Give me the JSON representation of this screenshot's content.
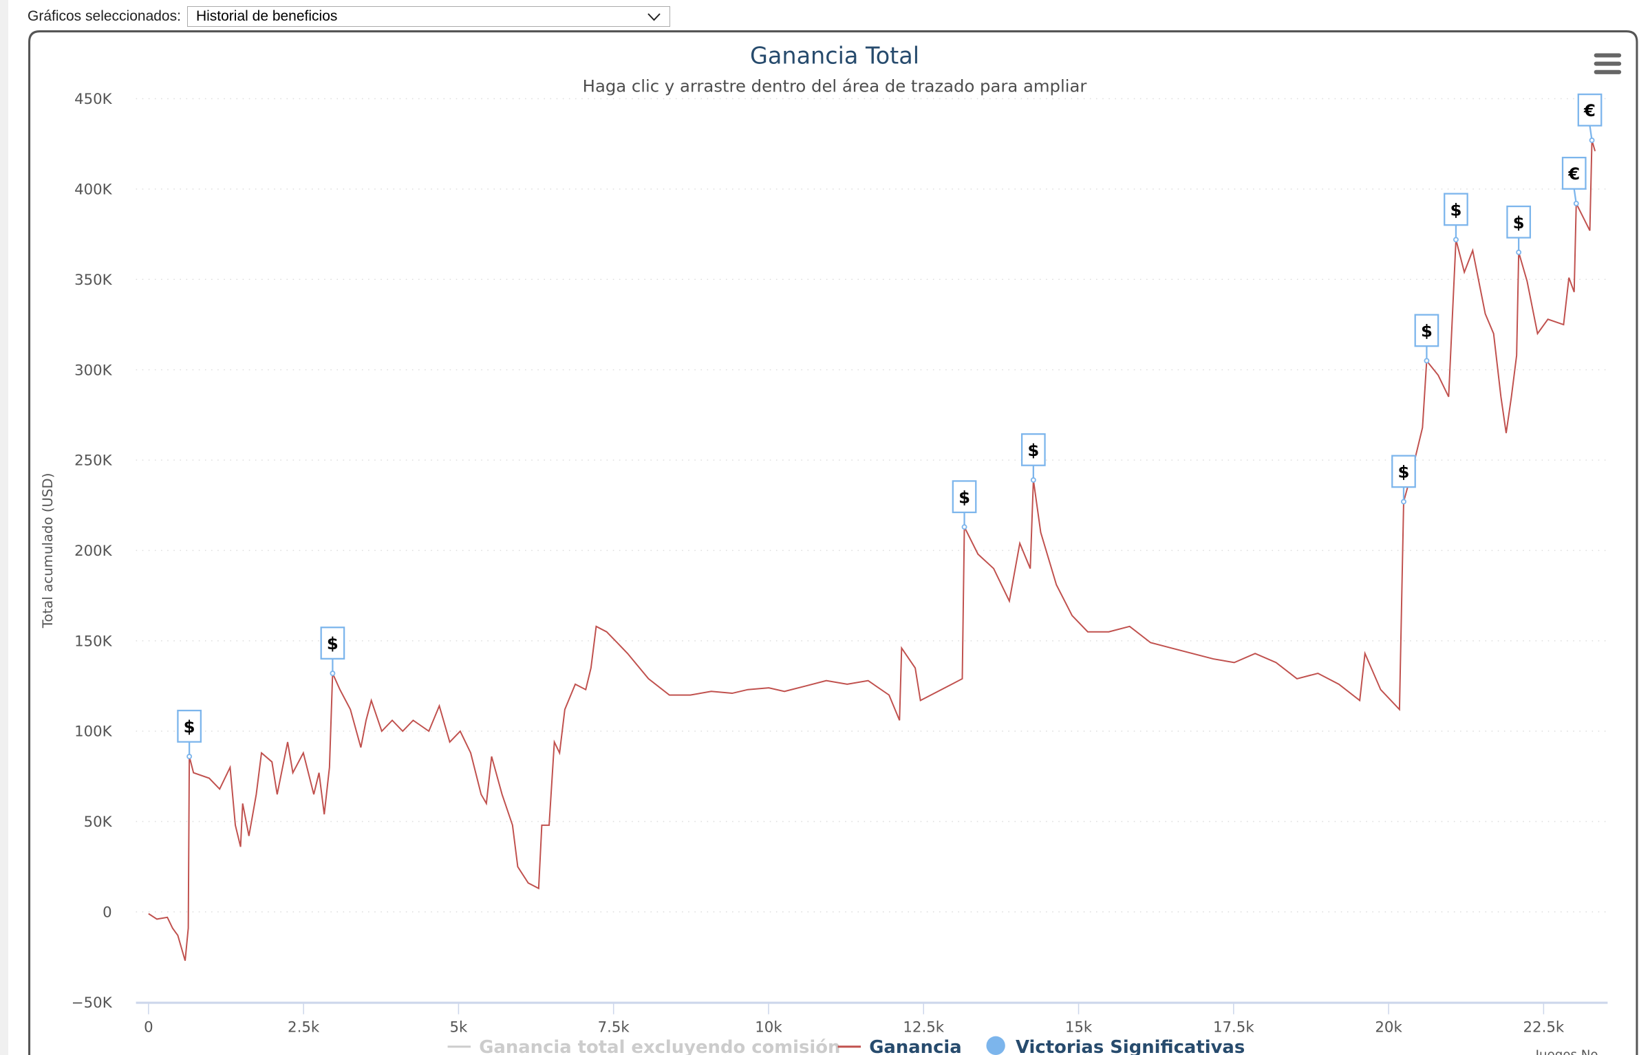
{
  "selector": {
    "label": "Gráficos seleccionados:",
    "value": "Historial de beneficios"
  },
  "menu_icon": "hamburger-menu-icon",
  "colors": {
    "line": "#c0504d",
    "marker": "#7cb5ec",
    "title": "#274b6d",
    "legend_hidden": "#cccccc"
  },
  "chart_data": {
    "type": "line",
    "title": "Ganancia Total",
    "subtitle": "Haga clic y arrastre dentro del área de trazado para ampliar",
    "xlabel": "Juegos No",
    "ylabel": "Total acumulado (USD)",
    "xlim": [
      0,
      23600
    ],
    "ylim": [
      -50000,
      450000
    ],
    "grid": true,
    "x_ticks": [
      {
        "v": 0,
        "label": "0"
      },
      {
        "v": 2500,
        "label": "2.5k"
      },
      {
        "v": 5000,
        "label": "5k"
      },
      {
        "v": 7500,
        "label": "7.5k"
      },
      {
        "v": 10000,
        "label": "10k"
      },
      {
        "v": 12500,
        "label": "12.5k"
      },
      {
        "v": 15000,
        "label": "15k"
      },
      {
        "v": 17500,
        "label": "17.5k"
      },
      {
        "v": 20000,
        "label": "20k"
      },
      {
        "v": 22500,
        "label": "22.5k"
      }
    ],
    "y_ticks": [
      {
        "v": -50000,
        "label": "−50K"
      },
      {
        "v": 0,
        "label": "0"
      },
      {
        "v": 50000,
        "label": "50K"
      },
      {
        "v": 100000,
        "label": "100K"
      },
      {
        "v": 150000,
        "label": "150K"
      },
      {
        "v": 200000,
        "label": "200K"
      },
      {
        "v": 250000,
        "label": "250K"
      },
      {
        "v": 300000,
        "label": "300K"
      },
      {
        "v": 350000,
        "label": "350K"
      },
      {
        "v": 400000,
        "label": "400K"
      },
      {
        "v": 450000,
        "label": "450K"
      }
    ],
    "legend": [
      {
        "name": "Ganancia total excluyendo comisión",
        "visible": false
      },
      {
        "name": "Ganancia",
        "visible": true
      },
      {
        "name": "Victorias Significativas",
        "visible": true
      }
    ],
    "legend_position": "bottom",
    "series": [
      {
        "name": "Ganancia",
        "points": [
          [
            0,
            -1000
          ],
          [
            135,
            -4000
          ],
          [
            304,
            -3000
          ],
          [
            388,
            -9000
          ],
          [
            472,
            -13000
          ],
          [
            590,
            -27000
          ],
          [
            641,
            -9000
          ],
          [
            658,
            86000
          ],
          [
            725,
            77000
          ],
          [
            978,
            74000
          ],
          [
            1147,
            68000
          ],
          [
            1316,
            80000
          ],
          [
            1400,
            48000
          ],
          [
            1484,
            36000
          ],
          [
            1518,
            60000
          ],
          [
            1619,
            42000
          ],
          [
            1738,
            65000
          ],
          [
            1822,
            88000
          ],
          [
            1991,
            83000
          ],
          [
            2075,
            65000
          ],
          [
            2244,
            94000
          ],
          [
            2328,
            77000
          ],
          [
            2497,
            88000
          ],
          [
            2665,
            65000
          ],
          [
            2750,
            77000
          ],
          [
            2834,
            54000
          ],
          [
            2918,
            80000
          ],
          [
            2969,
            132000
          ],
          [
            3087,
            123000
          ],
          [
            3256,
            112000
          ],
          [
            3424,
            91000
          ],
          [
            3509,
            106000
          ],
          [
            3593,
            117000
          ],
          [
            3762,
            100000
          ],
          [
            3931,
            106000
          ],
          [
            4099,
            100000
          ],
          [
            4268,
            106000
          ],
          [
            4521,
            100000
          ],
          [
            4690,
            114000
          ],
          [
            4858,
            94000
          ],
          [
            5027,
            100000
          ],
          [
            5196,
            88000
          ],
          [
            5364,
            65000
          ],
          [
            5449,
            60000
          ],
          [
            5533,
            86000
          ],
          [
            5702,
            65000
          ],
          [
            5870,
            48000
          ],
          [
            5955,
            25000
          ],
          [
            6123,
            16000
          ],
          [
            6292,
            13000
          ],
          [
            6343,
            48000
          ],
          [
            6461,
            48000
          ],
          [
            6545,
            94000
          ],
          [
            6630,
            88000
          ],
          [
            6714,
            112000
          ],
          [
            6883,
            126000
          ],
          [
            7051,
            123000
          ],
          [
            7136,
            135000
          ],
          [
            7220,
            158000
          ],
          [
            7389,
            155000
          ],
          [
            7557,
            149000
          ],
          [
            7726,
            143000
          ],
          [
            8063,
            129000
          ],
          [
            8400,
            120000
          ],
          [
            8738,
            120000
          ],
          [
            9075,
            122000
          ],
          [
            9413,
            121000
          ],
          [
            9666,
            123000
          ],
          [
            10003,
            124000
          ],
          [
            10256,
            122000
          ],
          [
            10594,
            125000
          ],
          [
            10931,
            128000
          ],
          [
            11268,
            126000
          ],
          [
            11606,
            128000
          ],
          [
            11943,
            120000
          ],
          [
            12112,
            106000
          ],
          [
            12146,
            146000
          ],
          [
            12365,
            135000
          ],
          [
            12449,
            117000
          ],
          [
            12618,
            120000
          ],
          [
            12787,
            123000
          ],
          [
            12955,
            126000
          ],
          [
            13124,
            129000
          ],
          [
            13158,
            213000
          ],
          [
            13377,
            198000
          ],
          [
            13630,
            190000
          ],
          [
            13883,
            172000
          ],
          [
            14052,
            204000
          ],
          [
            14221,
            190000
          ],
          [
            14271,
            239000
          ],
          [
            14389,
            210000
          ],
          [
            14642,
            181000
          ],
          [
            14895,
            164000
          ],
          [
            15148,
            155000
          ],
          [
            15486,
            155000
          ],
          [
            15823,
            158000
          ],
          [
            16160,
            149000
          ],
          [
            16498,
            146000
          ],
          [
            16835,
            143000
          ],
          [
            17173,
            140000
          ],
          [
            17510,
            138000
          ],
          [
            17847,
            143000
          ],
          [
            18185,
            138000
          ],
          [
            18522,
            129000
          ],
          [
            18860,
            132000
          ],
          [
            19197,
            126000
          ],
          [
            19534,
            117000
          ],
          [
            19619,
            143000
          ],
          [
            19872,
            123000
          ],
          [
            20175,
            112000
          ],
          [
            20243,
            227000
          ],
          [
            20378,
            244000
          ],
          [
            20547,
            268000
          ],
          [
            20614,
            305000
          ],
          [
            20800,
            297000
          ],
          [
            20969,
            285000
          ],
          [
            21086,
            372000
          ],
          [
            21221,
            354000
          ],
          [
            21356,
            366000
          ],
          [
            21558,
            331000
          ],
          [
            21693,
            320000
          ],
          [
            21811,
            285000
          ],
          [
            21896,
            265000
          ],
          [
            21980,
            285000
          ],
          [
            22064,
            308000
          ],
          [
            22098,
            365000
          ],
          [
            22233,
            349000
          ],
          [
            22402,
            320000
          ],
          [
            22570,
            328000
          ],
          [
            22823,
            325000
          ],
          [
            22908,
            351000
          ],
          [
            22992,
            343000
          ],
          [
            23026,
            392000
          ],
          [
            23245,
            377000
          ],
          [
            23279,
            427000
          ],
          [
            23330,
            421000
          ]
        ]
      },
      {
        "name": "Victorias Significativas",
        "flags": [
          {
            "x": 658,
            "y": 86000,
            "label": "$"
          },
          {
            "x": 2969,
            "y": 132000,
            "label": "$"
          },
          {
            "x": 13158,
            "y": 213000,
            "label": "$"
          },
          {
            "x": 14271,
            "y": 239000,
            "label": "$"
          },
          {
            "x": 20243,
            "y": 227000,
            "label": "$"
          },
          {
            "x": 20614,
            "y": 305000,
            "label": "$"
          },
          {
            "x": 21086,
            "y": 372000,
            "label": "$"
          },
          {
            "x": 22098,
            "y": 365000,
            "label": "$"
          },
          {
            "x": 23026,
            "y": 392000,
            "label": "€"
          },
          {
            "x": 23279,
            "y": 427000,
            "label": "€"
          }
        ]
      }
    ]
  }
}
